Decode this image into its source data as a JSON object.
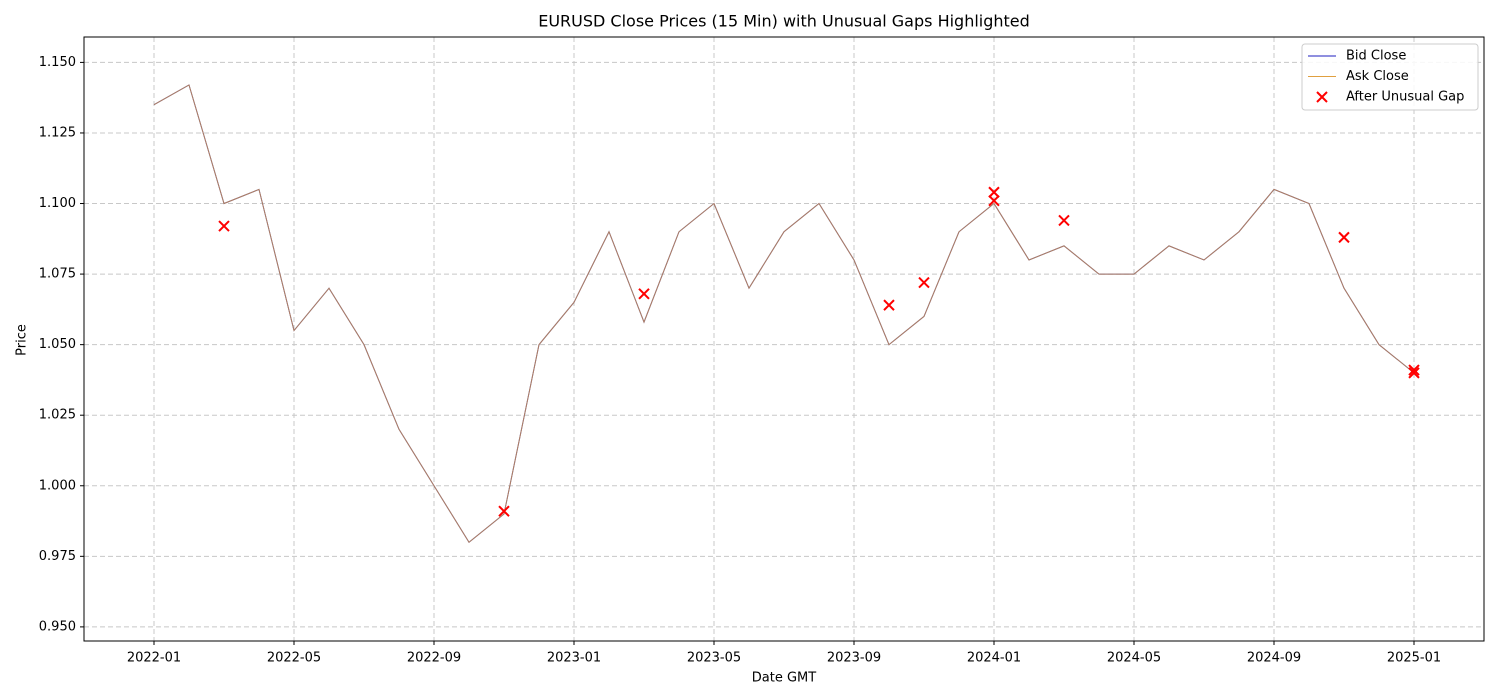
{
  "chart_data": {
    "type": "line",
    "title": "EURUSD Close Prices (15 Min) with Unusual Gaps Highlighted",
    "xlabel": "Date GMT",
    "ylabel": "Price",
    "x": [
      "2022-01",
      "2022-02",
      "2022-03",
      "2022-04",
      "2022-05",
      "2022-06",
      "2022-07",
      "2022-08",
      "2022-09",
      "2022-10",
      "2022-11",
      "2022-12",
      "2023-01",
      "2023-02",
      "2023-03",
      "2023-04",
      "2023-05",
      "2023-06",
      "2023-07",
      "2023-08",
      "2023-09",
      "2023-10",
      "2023-11",
      "2023-12",
      "2024-01",
      "2024-02",
      "2024-03",
      "2024-04",
      "2024-05",
      "2024-06",
      "2024-07",
      "2024-08",
      "2024-09",
      "2024-10",
      "2024-11",
      "2024-12",
      "2025-01"
    ],
    "series": [
      {
        "name": "Bid Close",
        "color": "#1f1fbf",
        "values": [
          1.135,
          1.142,
          1.1,
          1.105,
          1.055,
          1.07,
          1.05,
          1.02,
          1.0,
          0.98,
          0.99,
          1.05,
          1.065,
          1.09,
          1.058,
          1.09,
          1.1,
          1.07,
          1.09,
          1.1,
          1.08,
          1.05,
          1.06,
          1.09,
          1.1,
          1.08,
          1.085,
          1.075,
          1.075,
          1.085,
          1.08,
          1.09,
          1.105,
          1.1,
          1.07,
          1.05,
          1.04
        ]
      },
      {
        "name": "Ask Close",
        "color": "#e0a040",
        "values": [
          1.135,
          1.142,
          1.1,
          1.105,
          1.055,
          1.07,
          1.05,
          1.02,
          1.0,
          0.98,
          0.99,
          1.05,
          1.065,
          1.09,
          1.058,
          1.09,
          1.1,
          1.07,
          1.09,
          1.1,
          1.08,
          1.05,
          1.06,
          1.09,
          1.1,
          1.08,
          1.085,
          1.075,
          1.075,
          1.085,
          1.08,
          1.09,
          1.105,
          1.1,
          1.07,
          1.05,
          1.04
        ]
      }
    ],
    "markers": {
      "type": "scatter",
      "name": "After Unusual Gap",
      "color": "#ff0000",
      "x": [
        "2022-03",
        "2022-11",
        "2023-03",
        "2023-10",
        "2023-11",
        "2024-01",
        "2024-01",
        "2024-03",
        "2024-11",
        "2025-01",
        "2025-01"
      ],
      "values": [
        1.092,
        0.991,
        1.068,
        1.064,
        1.072,
        1.101,
        1.104,
        1.094,
        1.088,
        1.041,
        1.04
      ]
    },
    "xlim": [
      "2021-11",
      "2025-03"
    ],
    "xticks": [
      "2022-01",
      "2022-05",
      "2022-09",
      "2023-01",
      "2023-05",
      "2023-09",
      "2024-01",
      "2024-05",
      "2024-09",
      "2025-01"
    ],
    "ylim": [
      0.945,
      1.159
    ],
    "yticks": [
      {
        "value": 0.95,
        "label": "0.950"
      },
      {
        "value": 0.975,
        "label": "0.975"
      },
      {
        "value": 1.0,
        "label": "1.000"
      },
      {
        "value": 1.025,
        "label": "1.025"
      },
      {
        "value": 1.05,
        "label": "1.050"
      },
      {
        "value": 1.075,
        "label": "1.075"
      },
      {
        "value": 1.1,
        "label": "1.100"
      },
      {
        "value": 1.125,
        "label": "1.125"
      },
      {
        "value": 1.15,
        "label": "1.150"
      }
    ],
    "grid": true,
    "legend": "upper right"
  }
}
